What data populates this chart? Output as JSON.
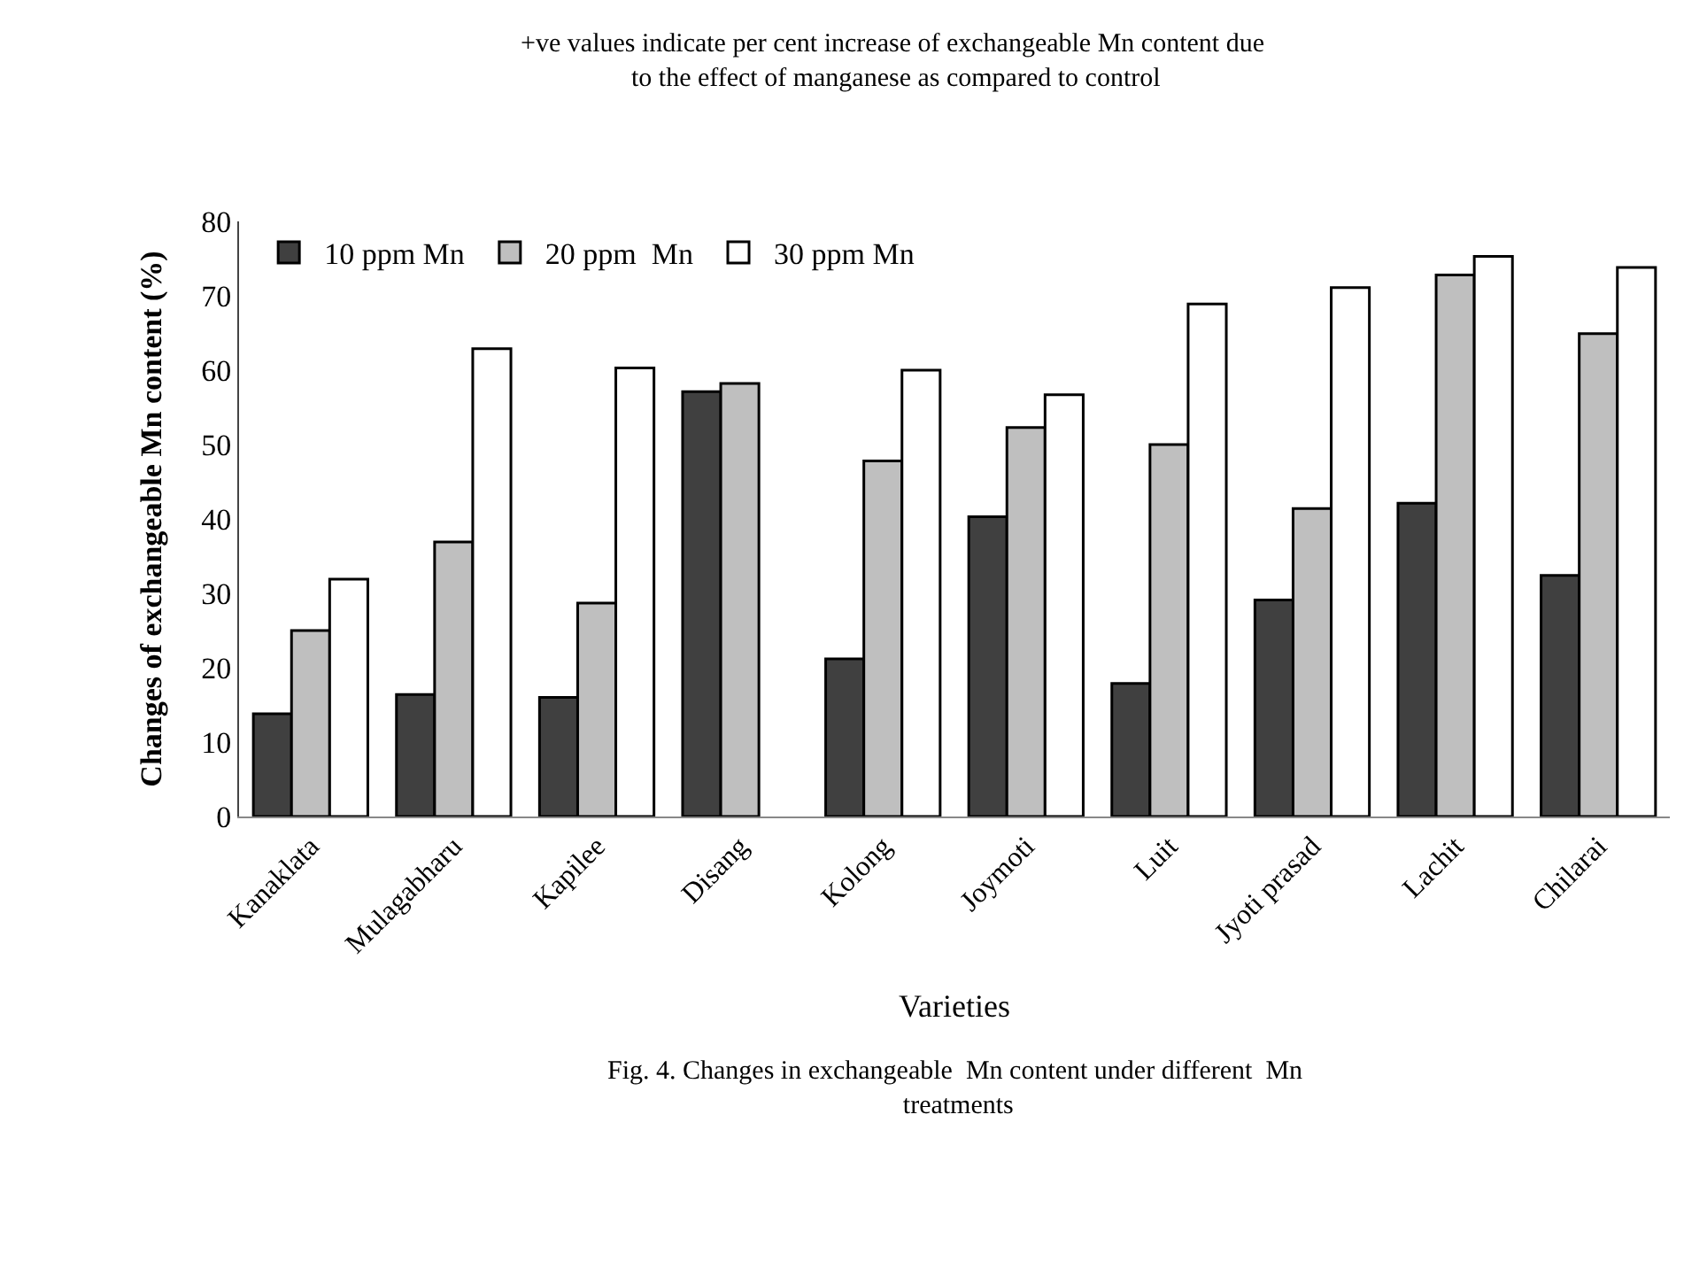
{
  "chart_data": {
    "type": "bar",
    "title": "+ve values indicate per cent increase of exchangeable Mn content due to the effect of manganese as compared to control",
    "xlabel": "Varieties",
    "ylabel": "Changes of exchangeable Mn content (%)",
    "categories": [
      "Kanaklata",
      "Mulagabharu",
      "Kapilee",
      "Disang",
      "Kolong",
      "Joymoti",
      "Luit",
      "Jyoti prasad",
      "Lachit",
      "Chilarai"
    ],
    "series": [
      {
        "name": "10 ppm Mn",
        "color": "#404040",
        "values": [
          13.8,
          16.4,
          16,
          57.1,
          21.2,
          40.3,
          17.9,
          29.1,
          42.1,
          32.4
        ]
      },
      {
        "name": "20 ppm  Mn",
        "color": "#bfbfbf",
        "values": [
          25,
          36.9,
          28.7,
          58.2,
          47.8,
          52.3,
          50,
          41.4,
          72.8,
          64.9
        ]
      },
      {
        "name": "30 ppm Mn",
        "color": "#ffffff",
        "values": [
          31.9,
          62.9,
          60.3,
          null,
          60,
          56.7,
          68.9,
          71.1,
          75.3,
          73.8
        ]
      }
    ],
    "ylim": [
      0,
      80
    ],
    "yticks": [
      0,
      10,
      20,
      30,
      40,
      50,
      60,
      70,
      80
    ],
    "grid": false,
    "legend": "top left",
    "annotations": [
      "Fig. 4. Changes in exchangeable  Mn content under different  Mn treatments"
    ]
  }
}
